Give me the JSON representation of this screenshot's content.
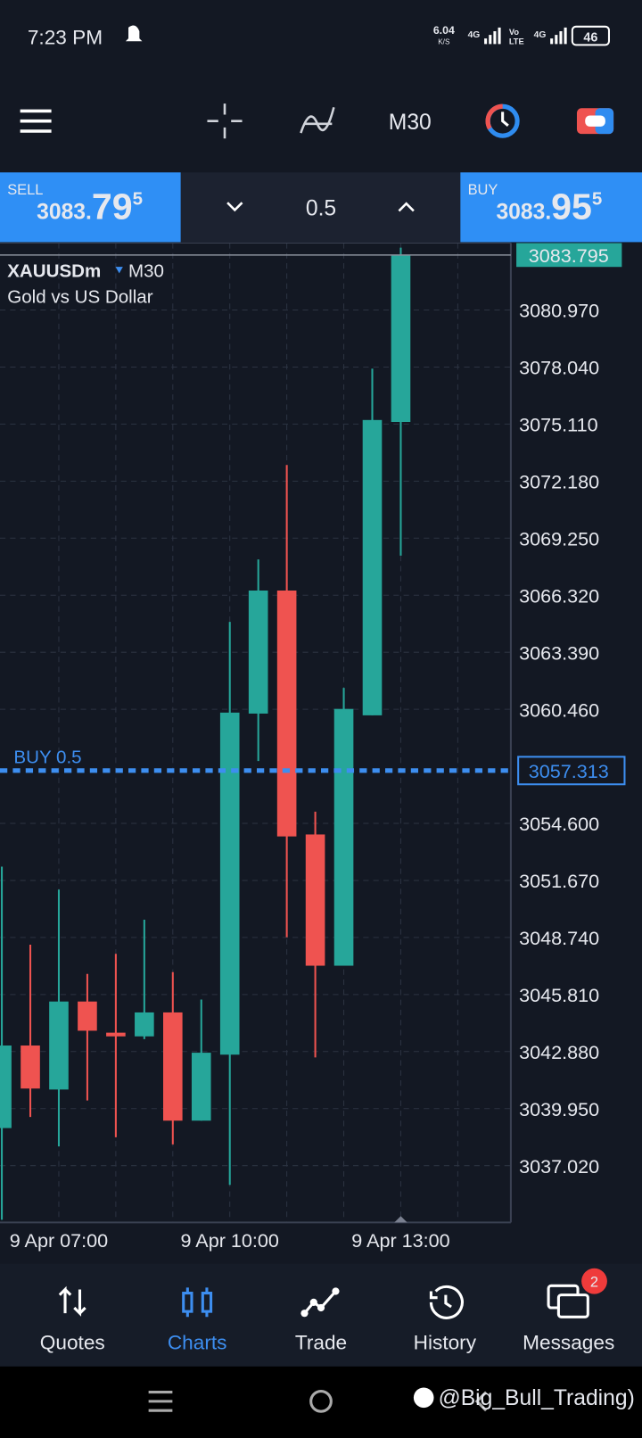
{
  "status_bar": {
    "time": "7:23 PM",
    "speed": "6.04",
    "speed_unit": "K/S",
    "network": [
      "4G",
      "Vo",
      "LTE",
      "4G"
    ],
    "battery": "46"
  },
  "toolbar": {
    "timeframe": "M30"
  },
  "trade_bar": {
    "sell": {
      "label": "SELL",
      "price_main": "3083.",
      "price_big": "79",
      "price_sup": "5"
    },
    "volume": "0.5",
    "buy": {
      "label": "BUY",
      "price_main": "3083.",
      "price_big": "95",
      "price_sup": "5"
    }
  },
  "chart_data": {
    "type": "candlestick",
    "symbol": "XAUUSDm",
    "timeframe": "M30",
    "description": "Gold vs US Dollar",
    "categories": [
      null,
      null,
      "9 Apr 07:00",
      null,
      null,
      null,
      null,
      null,
      "9 Apr 10:00",
      null,
      null,
      null,
      null,
      null,
      "9 Apr 13:00"
    ],
    "open": [
      3038.95,
      3043.19,
      3040.93,
      3045.45,
      3043.85,
      3043.66,
      3044.89,
      3039.33,
      3042.72,
      3060.24,
      3066.56,
      3054.03,
      3047.29,
      3060.15,
      3075.22
    ],
    "high": [
      3052.38,
      3048.37,
      3051.2,
      3046.87,
      3047.9,
      3049.65,
      3046.96,
      3045.55,
      3064.95,
      3068.16,
      3073.01,
      3055.2,
      3061.56,
      3077.96,
      3084.17
    ],
    "low": [
      3034.24,
      3039.52,
      3038.01,
      3040.37,
      3038.48,
      3043.52,
      3038.11,
      3039.33,
      3036.03,
      3057.8,
      3048.75,
      3042.58,
      3047.29,
      3060.15,
      3068.35
    ],
    "close": [
      3043.19,
      3040.98,
      3045.45,
      3043.95,
      3043.66,
      3044.89,
      3039.33,
      3042.82,
      3060.29,
      3066.56,
      3053.93,
      3047.29,
      3060.48,
      3075.32,
      3083.795
    ],
    "up_color": "#26a69a",
    "down_color": "#ef5350",
    "ylim": [
      3034.1,
      3084.41
    ],
    "yticks": [
      {
        "value": 3037.02,
        "label": "3037.020"
      },
      {
        "value": 3039.95,
        "label": "3039.950"
      },
      {
        "value": 3042.88,
        "label": "3042.880"
      },
      {
        "value": 3045.81,
        "label": "3045.810"
      },
      {
        "value": 3048.74,
        "label": "3048.740"
      },
      {
        "value": 3051.67,
        "label": "3051.670"
      },
      {
        "value": 3054.6,
        "label": "3054.600"
      },
      {
        "value": 3060.46,
        "label": "3060.460"
      },
      {
        "value": 3063.39,
        "label": "3063.390"
      },
      {
        "value": 3066.32,
        "label": "3066.320"
      },
      {
        "value": 3069.25,
        "label": "3069.250"
      },
      {
        "value": 3072.18,
        "label": "3072.180"
      },
      {
        "value": 3075.11,
        "label": "3075.110"
      },
      {
        "value": 3078.04,
        "label": "3078.040"
      },
      {
        "value": 3080.97,
        "label": "3080.970"
      }
    ],
    "grid": true,
    "price_line": 3083.795,
    "order_line": {
      "text": "BUY 0.5",
      "value": 3057.313,
      "color": "#3d8ef0"
    }
  },
  "nav": {
    "items": [
      "Quotes",
      "Charts",
      "Trade",
      "History",
      "Messages"
    ],
    "badge": "2"
  },
  "watermark": "@Big_Bull_Trading)"
}
